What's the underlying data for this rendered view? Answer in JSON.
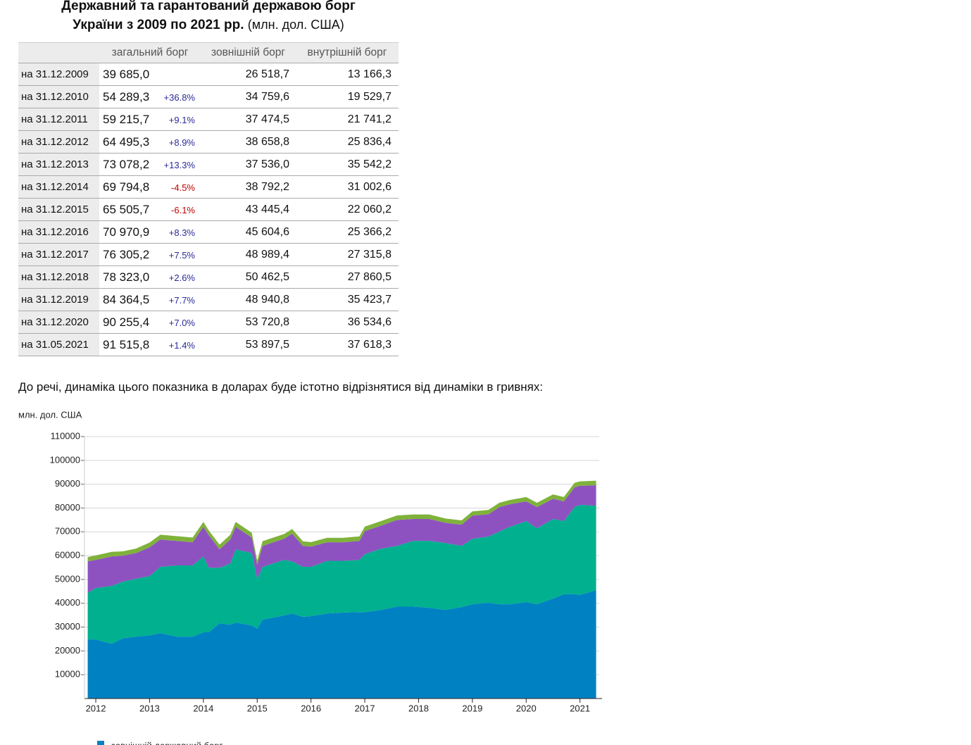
{
  "header": {
    "title_line1": "Державний та гарантований державою борг",
    "title_line2": "України з 2009 по 2021 рр.",
    "title_unit": "(млн. дол. США)"
  },
  "table": {
    "columns": [
      "загальний борг",
      "зовнішній борг",
      "внутрішній борг"
    ],
    "rows": [
      {
        "date": "на 31.12.2009",
        "total": "39 685,0",
        "external": "26 518,7",
        "internal": "13 166,3"
      },
      {
        "date": "на 31.12.2010",
        "total": "54 289,3",
        "change": "+36.8%",
        "external": "34 759,6",
        "internal": "19 529,7"
      },
      {
        "date": "на 31.12.2011",
        "total": "59 215,7",
        "change": "+9.1%",
        "external": "37 474,5",
        "internal": "21 741,2"
      },
      {
        "date": "на 31.12.2012",
        "total": "64 495,3",
        "change": "+8.9%",
        "external": "38 658,8",
        "internal": "25 836,4"
      },
      {
        "date": "на 31.12.2013",
        "total": "73 078,2",
        "change": "+13.3%",
        "external": "37 536,0",
        "internal": "35 542,2"
      },
      {
        "date": "на 31.12.2014",
        "total": "69 794,8",
        "change": "-4.5%",
        "external": "38 792,2",
        "internal": "31 002,6"
      },
      {
        "date": "на 31.12.2015",
        "total": "65 505,7",
        "change": "-6.1%",
        "external": "43 445,4",
        "internal": "22 060,2"
      },
      {
        "date": "на 31.12.2016",
        "total": "70 970,9",
        "change": "+8.3%",
        "external": "45 604,6",
        "internal": "25 366,2"
      },
      {
        "date": "на 31.12.2017",
        "total": "76 305,2",
        "change": "+7.5%",
        "external": "48 989,4",
        "internal": "27 315,8"
      },
      {
        "date": "на 31.12.2018",
        "total": "78 323,0",
        "change": "+2.6%",
        "external": "50 462,5",
        "internal": "27 860,5"
      },
      {
        "date": "на 31.12.2019",
        "total": "84 364,5",
        "change": "+7.7%",
        "external": "48 940,8",
        "internal": "35 423,7"
      },
      {
        "date": "на 31.12.2020",
        "total": "90 255,4",
        "change": "+7.0%",
        "external": "53 720,8",
        "internal": "36 534,6"
      },
      {
        "date": "на 31.05.2021",
        "total": "91 515,8",
        "change": "+1.4%",
        "external": "53 897,5",
        "internal": "37 618,3"
      }
    ]
  },
  "paragraph": "До речі, динаміка цього показника в доларах буде істотно відрізнятися від динаміки в гривнях:",
  "chart_data": {
    "type": "stacked_area",
    "y_label": "млн. дол. США",
    "x": [
      2011.85,
      2012.0,
      2012.3,
      2012.5,
      2012.75,
      2013.0,
      2013.2,
      2013.5,
      2013.8,
      2014.0,
      2014.1,
      2014.3,
      2014.5,
      2014.6,
      2014.9,
      2015.0,
      2015.1,
      2015.5,
      2015.65,
      2015.85,
      2016.0,
      2016.3,
      2016.6,
      2016.9,
      2017.0,
      2017.3,
      2017.6,
      2017.9,
      2018.2,
      2018.5,
      2018.8,
      2019.0,
      2019.3,
      2019.5,
      2019.7,
      2020.0,
      2020.2,
      2020.5,
      2020.7,
      2020.9,
      2021.0,
      2021.3
    ],
    "series": [
      {
        "name": "зовнішній державний борг",
        "color": "#0081c2",
        "values": [
          24800,
          24800,
          23000,
          25300,
          26000,
          26500,
          27500,
          26000,
          26000,
          27800,
          27800,
          31600,
          31000,
          31900,
          30700,
          29300,
          33100,
          34900,
          35700,
          34300,
          34600,
          35700,
          36100,
          36300,
          36300,
          37200,
          38600,
          38600,
          38100,
          37200,
          38400,
          39600,
          40200,
          39600,
          39600,
          40500,
          39600,
          42000,
          43800,
          43800,
          43500,
          45500
        ]
      },
      {
        "color": "#00b08f",
        "values": [
          19600,
          21600,
          24300,
          23800,
          24300,
          24900,
          27800,
          29900,
          29900,
          31900,
          27100,
          23300,
          25700,
          30700,
          30400,
          20900,
          22200,
          23300,
          21900,
          21000,
          20700,
          22100,
          21700,
          21900,
          24300,
          25700,
          25500,
          27600,
          28100,
          28100,
          25700,
          27500,
          27800,
          30500,
          32500,
          34000,
          31900,
          33400,
          30700,
          36600,
          37800,
          35500
        ]
      },
      {
        "color": "#8e52c0",
        "values": [
          13200,
          11800,
          12400,
          10900,
          10800,
          12100,
          11500,
          10300,
          9700,
          12400,
          13700,
          7700,
          10100,
          9500,
          6500,
          5900,
          8800,
          8900,
          11600,
          8800,
          8500,
          7800,
          7800,
          8000,
          9700,
          9700,
          10900,
          9200,
          9200,
          8500,
          8900,
          9700,
          9400,
          10300,
          9500,
          8300,
          8900,
          8500,
          8300,
          8300,
          8000,
          8600
        ]
      },
      {
        "color": "#7fb23a",
        "values": [
          1800,
          1900,
          1900,
          1800,
          1900,
          2000,
          2000,
          2000,
          2000,
          2100,
          2000,
          2000,
          2000,
          2100,
          2000,
          1900,
          2000,
          2000,
          2000,
          1900,
          1900,
          1900,
          1900,
          1900,
          1900,
          1900,
          1900,
          1900,
          1900,
          1800,
          1800,
          1800,
          1800,
          1800,
          1800,
          1800,
          1800,
          1800,
          1800,
          1900,
          1900,
          1900
        ]
      }
    ],
    "xlim": [
      2011.79,
      2021.41
    ],
    "xticks": [
      2012,
      2013,
      2014,
      2015,
      2016,
      2017,
      2018,
      2019,
      2020,
      2021
    ],
    "ylim": [
      0,
      110000
    ],
    "yticks": [
      10000,
      20000,
      30000,
      40000,
      50000,
      60000,
      70000,
      80000,
      90000,
      100000,
      110000
    ],
    "grid": true
  }
}
